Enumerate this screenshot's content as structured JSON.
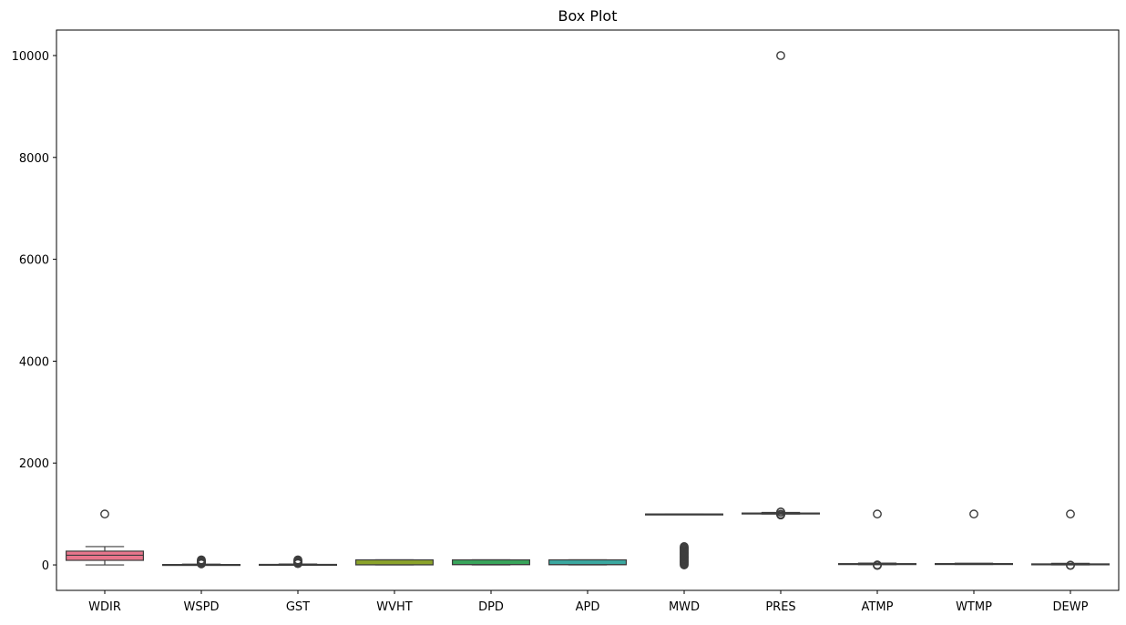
{
  "chart_data": {
    "type": "box",
    "title": "Box Plot",
    "xlabel": "",
    "ylabel": "",
    "ylim": [
      -500,
      10500
    ],
    "y_ticks": [
      0,
      2000,
      4000,
      6000,
      8000,
      10000
    ],
    "y_tick_labels": [
      "0",
      "2000",
      "4000",
      "6000",
      "8000",
      "10000"
    ],
    "grid": false,
    "legend": "none",
    "categories": [
      "WDIR",
      "WSPD",
      "GST",
      "WVHT",
      "DPD",
      "APD",
      "MWD",
      "PRES",
      "ATMP",
      "WTMP",
      "DEWP"
    ],
    "series": [
      {
        "category": "WDIR",
        "color": "#e8768c",
        "stats": {
          "whisker_low": 0,
          "q1": 90,
          "median": 190,
          "q3": 270,
          "whisker_high": 360
        },
        "outliers": [
          999
        ]
      },
      {
        "category": "WSPD",
        "color": "#d98b2b",
        "stats": {
          "whisker_low": 0,
          "q1": 3,
          "median": 5,
          "q3": 8,
          "whisker_high": 15
        },
        "outliers": [
          20,
          30,
          40,
          50,
          60,
          70,
          80,
          90,
          99
        ]
      },
      {
        "category": "GST",
        "color": "#b89b22",
        "stats": {
          "whisker_low": 0,
          "q1": 4,
          "median": 6,
          "q3": 10,
          "whisker_high": 18
        },
        "outliers": [
          25,
          35,
          45,
          55,
          65,
          75,
          85,
          99
        ]
      },
      {
        "category": "WVHT",
        "color": "#8ba32a",
        "stats": {
          "whisker_low": 0,
          "q1": 1,
          "median": 2,
          "q3": 99,
          "whisker_high": 99
        },
        "outliers": []
      },
      {
        "category": "DPD",
        "color": "#38a55b",
        "stats": {
          "whisker_low": 0,
          "q1": 5,
          "median": 9,
          "q3": 99,
          "whisker_high": 99
        },
        "outliers": []
      },
      {
        "category": "APD",
        "color": "#3aa8a0",
        "stats": {
          "whisker_low": 0,
          "q1": 4,
          "median": 6,
          "q3": 99,
          "whisker_high": 99
        },
        "outliers": []
      },
      {
        "category": "MWD",
        "color": "#3aa2c8",
        "stats": {
          "whisker_low": 999,
          "q1": 999,
          "median": 999,
          "q3": 999,
          "whisker_high": 999
        },
        "outliers": [
          0,
          20,
          40,
          60,
          80,
          100,
          120,
          140,
          160,
          180,
          200,
          220,
          240,
          260,
          280,
          300,
          320,
          340,
          360
        ]
      },
      {
        "category": "PRES",
        "color": "#7d8fe0",
        "stats": {
          "whisker_low": 1000,
          "q1": 1008,
          "median": 1013,
          "q3": 1018,
          "whisker_high": 1030
        },
        "outliers": [
          980,
          990,
          995,
          1035,
          1040,
          9999
        ]
      },
      {
        "category": "ATMP",
        "color": "#bc82e0",
        "stats": {
          "whisker_low": 5,
          "q1": 15,
          "median": 20,
          "q3": 25,
          "whisker_high": 35
        },
        "outliers": [
          -10,
          -5,
          0,
          999
        ]
      },
      {
        "category": "WTMP",
        "color": "#e07ac8",
        "stats": {
          "whisker_low": 10,
          "q1": 18,
          "median": 22,
          "q3": 26,
          "whisker_high": 32
        },
        "outliers": [
          999
        ]
      },
      {
        "category": "DEWP",
        "color": "#e47aa2",
        "stats": {
          "whisker_low": 0,
          "q1": 10,
          "median": 15,
          "q3": 20,
          "whisker_high": 30
        },
        "outliers": [
          -10,
          -5,
          999
        ]
      }
    ]
  }
}
